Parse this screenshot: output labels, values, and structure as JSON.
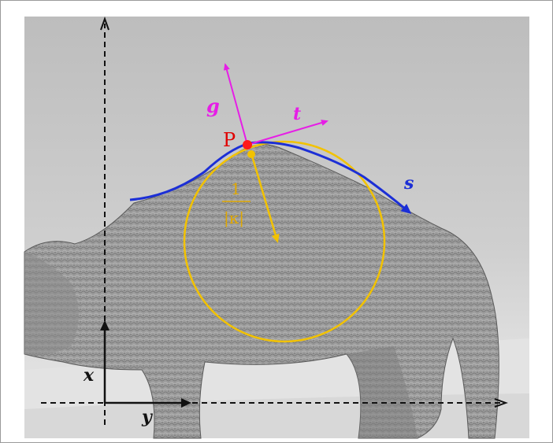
{
  "figure": {
    "labels": {
      "point": "P",
      "normal": "g",
      "tangent": "t",
      "arc": "s",
      "axis_x": "x",
      "axis_y": "y",
      "radius_numerator": "1",
      "radius_denominator": "|κ|"
    },
    "colors": {
      "background_photo": "#d9d9d9",
      "curve": "#1c2fd6",
      "vectors": "#e61ee6",
      "point": "#ff1a1a",
      "circle": "#f2c200",
      "axes": "#111111",
      "text_point": "#e00000",
      "text_vectors": "#e61ee6",
      "text_arc": "#1c2fd6",
      "text_radius": "#e0a800"
    }
  }
}
